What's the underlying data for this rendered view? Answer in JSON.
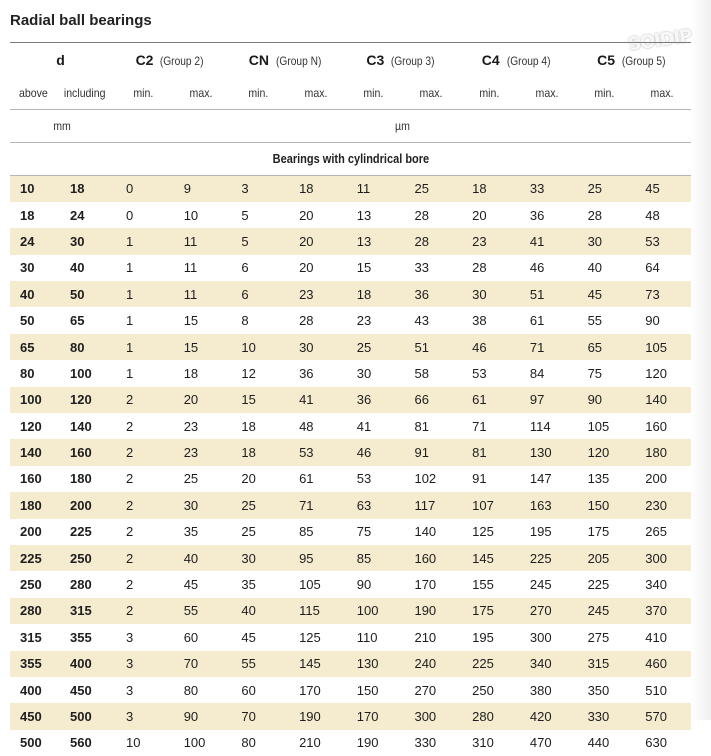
{
  "title": "Radial ball bearings",
  "watermark": "SOIDIP",
  "header": {
    "d": "d",
    "groups": [
      {
        "code": "C2",
        "label": "(Group 2)"
      },
      {
        "code": "CN",
        "label": "(Group N)"
      },
      {
        "code": "C3",
        "label": "(Group 3)"
      },
      {
        "code": "C4",
        "label": "(Group 4)"
      },
      {
        "code": "C5",
        "label": "(Group 5)"
      }
    ],
    "above": "above",
    "including": "including",
    "min": "min.",
    "max": "max.",
    "unit_d": "mm",
    "unit_c": "µm",
    "section": "Bearings with cylindrical bore"
  },
  "rows": [
    [
      "10",
      "18",
      "0",
      "9",
      "3",
      "18",
      "11",
      "25",
      "18",
      "33",
      "25",
      "45"
    ],
    [
      "18",
      "24",
      "0",
      "10",
      "5",
      "20",
      "13",
      "28",
      "20",
      "36",
      "28",
      "48"
    ],
    [
      "24",
      "30",
      "1",
      "11",
      "5",
      "20",
      "13",
      "28",
      "23",
      "41",
      "30",
      "53"
    ],
    [
      "30",
      "40",
      "1",
      "11",
      "6",
      "20",
      "15",
      "33",
      "28",
      "46",
      "40",
      "64"
    ],
    [
      "40",
      "50",
      "1",
      "11",
      "6",
      "23",
      "18",
      "36",
      "30",
      "51",
      "45",
      "73"
    ],
    [
      "50",
      "65",
      "1",
      "15",
      "8",
      "28",
      "23",
      "43",
      "38",
      "61",
      "55",
      "90"
    ],
    [
      "65",
      "80",
      "1",
      "15",
      "10",
      "30",
      "25",
      "51",
      "46",
      "71",
      "65",
      "105"
    ],
    [
      "80",
      "100",
      "1",
      "18",
      "12",
      "36",
      "30",
      "58",
      "53",
      "84",
      "75",
      "120"
    ],
    [
      "100",
      "120",
      "2",
      "20",
      "15",
      "41",
      "36",
      "66",
      "61",
      "97",
      "90",
      "140"
    ],
    [
      "120",
      "140",
      "2",
      "23",
      "18",
      "48",
      "41",
      "81",
      "71",
      "114",
      "105",
      "160"
    ],
    [
      "140",
      "160",
      "2",
      "23",
      "18",
      "53",
      "46",
      "91",
      "81",
      "130",
      "120",
      "180"
    ],
    [
      "160",
      "180",
      "2",
      "25",
      "20",
      "61",
      "53",
      "102",
      "91",
      "147",
      "135",
      "200"
    ],
    [
      "180",
      "200",
      "2",
      "30",
      "25",
      "71",
      "63",
      "117",
      "107",
      "163",
      "150",
      "230"
    ],
    [
      "200",
      "225",
      "2",
      "35",
      "25",
      "85",
      "75",
      "140",
      "125",
      "195",
      "175",
      "265"
    ],
    [
      "225",
      "250",
      "2",
      "40",
      "30",
      "95",
      "85",
      "160",
      "145",
      "225",
      "205",
      "300"
    ],
    [
      "250",
      "280",
      "2",
      "45",
      "35",
      "105",
      "90",
      "170",
      "155",
      "245",
      "225",
      "340"
    ],
    [
      "280",
      "315",
      "2",
      "55",
      "40",
      "115",
      "100",
      "190",
      "175",
      "270",
      "245",
      "370"
    ],
    [
      "315",
      "355",
      "3",
      "60",
      "45",
      "125",
      "110",
      "210",
      "195",
      "300",
      "275",
      "410"
    ],
    [
      "355",
      "400",
      "3",
      "70",
      "55",
      "145",
      "130",
      "240",
      "225",
      "340",
      "315",
      "460"
    ],
    [
      "400",
      "450",
      "3",
      "80",
      "60",
      "170",
      "150",
      "270",
      "250",
      "380",
      "350",
      "510"
    ],
    [
      "450",
      "500",
      "3",
      "90",
      "70",
      "190",
      "170",
      "300",
      "280",
      "420",
      "330",
      "570"
    ],
    [
      "500",
      "560",
      "10",
      "100",
      "80",
      "210",
      "190",
      "330",
      "310",
      "470",
      "440",
      "630"
    ]
  ]
}
